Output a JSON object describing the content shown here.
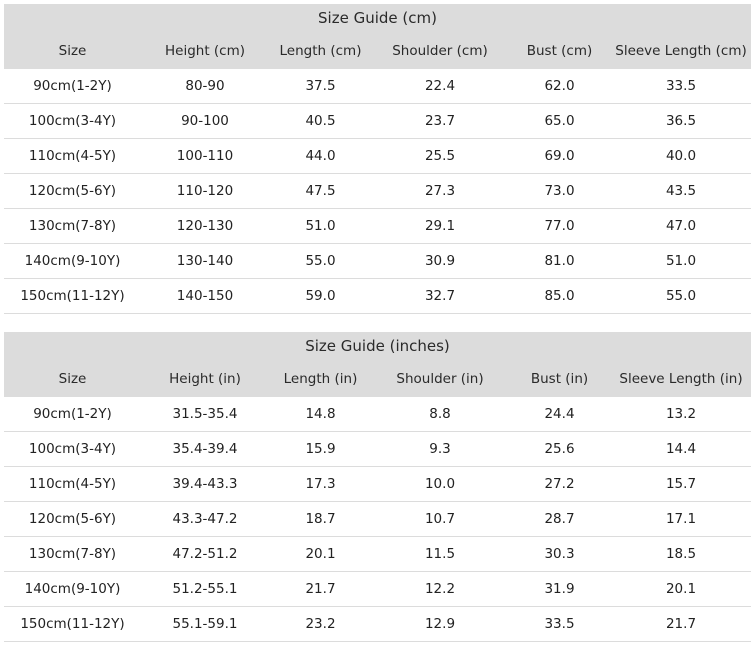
{
  "tables": [
    {
      "title": "Size Guide (cm)",
      "headers": [
        "Size",
        "Height (cm)",
        "Length (cm)",
        "Shoulder (cm)",
        "Bust (cm)",
        "Sleeve Length (cm)"
      ],
      "rows": [
        [
          "90cm(1-2Y)",
          "80-90",
          "37.5",
          "22.4",
          "62.0",
          "33.5"
        ],
        [
          "100cm(3-4Y)",
          "90-100",
          "40.5",
          "23.7",
          "65.0",
          "36.5"
        ],
        [
          "110cm(4-5Y)",
          "100-110",
          "44.0",
          "25.5",
          "69.0",
          "40.0"
        ],
        [
          "120cm(5-6Y)",
          "110-120",
          "47.5",
          "27.3",
          "73.0",
          "43.5"
        ],
        [
          "130cm(7-8Y)",
          "120-130",
          "51.0",
          "29.1",
          "77.0",
          "47.0"
        ],
        [
          "140cm(9-10Y)",
          "130-140",
          "55.0",
          "30.9",
          "81.0",
          "51.0"
        ],
        [
          "150cm(11-12Y)",
          "140-150",
          "59.0",
          "32.7",
          "85.0",
          "55.0"
        ]
      ]
    },
    {
      "title": "Size Guide (inches)",
      "headers": [
        "Size",
        "Height (in)",
        "Length (in)",
        "Shoulder (in)",
        "Bust (in)",
        "Sleeve Length (in)"
      ],
      "rows": [
        [
          "90cm(1-2Y)",
          "31.5-35.4",
          "14.8",
          "8.8",
          "24.4",
          "13.2"
        ],
        [
          "100cm(3-4Y)",
          "35.4-39.4",
          "15.9",
          "9.3",
          "25.6",
          "14.4"
        ],
        [
          "110cm(4-5Y)",
          "39.4-43.3",
          "17.3",
          "10.0",
          "27.2",
          "15.7"
        ],
        [
          "120cm(5-6Y)",
          "43.3-47.2",
          "18.7",
          "10.7",
          "28.7",
          "17.1"
        ],
        [
          "130cm(7-8Y)",
          "47.2-51.2",
          "20.1",
          "11.5",
          "30.3",
          "18.5"
        ],
        [
          "140cm(9-10Y)",
          "51.2-55.1",
          "21.7",
          "12.2",
          "31.9",
          "20.1"
        ],
        [
          "150cm(11-12Y)",
          "55.1-59.1",
          "23.2",
          "12.9",
          "33.5",
          "21.7"
        ]
      ]
    }
  ],
  "colors": {
    "header_background": "#dcdcdc",
    "row_divider": "#dcdcdc",
    "text": "#222222"
  }
}
